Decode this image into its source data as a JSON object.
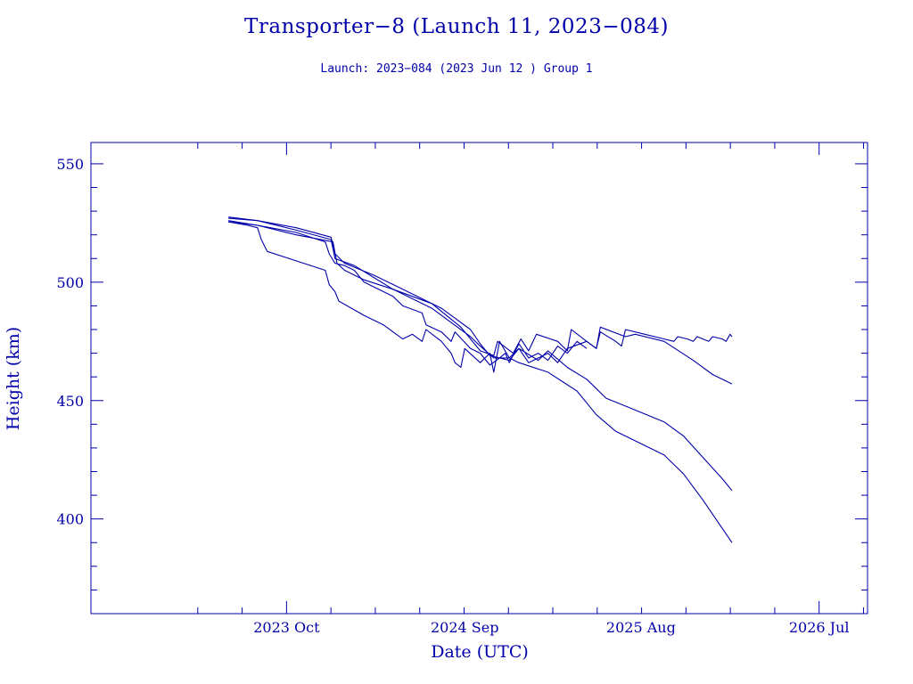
{
  "chart_data": {
    "type": "line",
    "title": "Transporter−8 (Launch 11, 2023−084)",
    "subtitle": "Launch: 2023−084  (2023 Jun 12 )  Group 1",
    "xlabel": "Date (UTC)",
    "ylabel": "Height (km)",
    "xlim": [
      2022.74,
      2026.75
    ],
    "ylim": [
      360,
      559
    ],
    "x_ticks": [
      {
        "value": 2023.75,
        "label": "2023 Oct"
      },
      {
        "value": 2024.67,
        "label": "2024 Sep"
      },
      {
        "value": 2025.58,
        "label": "2025 Aug"
      },
      {
        "value": 2026.5,
        "label": "2026 Jul"
      }
    ],
    "y_ticks": [
      {
        "value": 400,
        "label": "400"
      },
      {
        "value": 450,
        "label": "450"
      },
      {
        "value": 500,
        "label": "500"
      },
      {
        "value": 550,
        "label": "550"
      }
    ],
    "line_color": "#0000aa",
    "series": [
      {
        "name": "object-1",
        "points": [
          [
            2023.45,
            527.5
          ],
          [
            2023.6,
            526
          ],
          [
            2023.8,
            523
          ],
          [
            2023.98,
            519
          ],
          [
            2024.0,
            512
          ],
          [
            2024.05,
            508
          ],
          [
            2024.2,
            503
          ],
          [
            2024.35,
            497
          ],
          [
            2024.55,
            489
          ],
          [
            2024.7,
            480
          ],
          [
            2024.75,
            474
          ],
          [
            2024.8,
            469
          ],
          [
            2024.9,
            467
          ],
          [
            2024.95,
            472
          ],
          [
            2025.05,
            467
          ],
          [
            2025.1,
            471
          ],
          [
            2025.2,
            464
          ],
          [
            2025.3,
            459
          ],
          [
            2025.4,
            451
          ],
          [
            2025.55,
            446
          ],
          [
            2025.7,
            441
          ],
          [
            2025.8,
            435
          ],
          [
            2025.9,
            426
          ],
          [
            2026.0,
            417
          ],
          [
            2026.05,
            412
          ]
        ]
      },
      {
        "name": "object-2",
        "points": [
          [
            2023.45,
            525.5
          ],
          [
            2023.6,
            524
          ],
          [
            2023.8,
            520
          ],
          [
            2023.99,
            517
          ],
          [
            2024.01,
            508
          ],
          [
            2024.05,
            505
          ],
          [
            2024.15,
            501
          ],
          [
            2024.3,
            497
          ],
          [
            2024.5,
            489
          ],
          [
            2024.7,
            477
          ],
          [
            2024.75,
            473
          ],
          [
            2024.82,
            468
          ],
          [
            2024.9,
            468
          ],
          [
            2024.95,
            466
          ],
          [
            2025.1,
            462
          ],
          [
            2025.25,
            454
          ],
          [
            2025.35,
            444
          ],
          [
            2025.45,
            437
          ],
          [
            2025.6,
            431
          ],
          [
            2025.7,
            427
          ],
          [
            2025.8,
            419
          ],
          [
            2025.9,
            408
          ],
          [
            2026.0,
            396
          ],
          [
            2026.05,
            390
          ]
        ]
      },
      {
        "name": "object-3",
        "points": [
          [
            2023.45,
            527
          ],
          [
            2023.6,
            526
          ],
          [
            2023.8,
            522
          ],
          [
            2023.98,
            518
          ],
          [
            2024.0,
            510
          ],
          [
            2024.1,
            507
          ],
          [
            2024.2,
            502
          ],
          [
            2024.3,
            497
          ],
          [
            2024.5,
            491
          ],
          [
            2024.65,
            481
          ],
          [
            2024.75,
            471
          ],
          [
            2024.82,
            469
          ],
          [
            2024.84,
            475
          ],
          [
            2024.92,
            470
          ],
          [
            2024.96,
            476
          ],
          [
            2025.0,
            471
          ],
          [
            2025.04,
            478
          ],
          [
            2025.15,
            475
          ],
          [
            2025.2,
            471
          ],
          [
            2025.22,
            480
          ],
          [
            2025.3,
            475
          ],
          [
            2025.35,
            472
          ],
          [
            2025.37,
            481
          ],
          [
            2025.5,
            477
          ],
          [
            2025.55,
            478
          ],
          [
            2025.7,
            475
          ],
          [
            2025.85,
            467
          ],
          [
            2025.95,
            461
          ],
          [
            2026.05,
            457
          ]
        ]
      },
      {
        "name": "object-4",
        "points": [
          [
            2023.45,
            525.5
          ],
          [
            2023.55,
            524
          ],
          [
            2023.6,
            523
          ],
          [
            2023.62,
            518
          ],
          [
            2023.65,
            513
          ],
          [
            2023.8,
            509
          ],
          [
            2023.95,
            505
          ],
          [
            2023.97,
            499
          ],
          [
            2024.0,
            496
          ],
          [
            2024.02,
            492
          ],
          [
            2024.15,
            486
          ],
          [
            2024.25,
            482
          ],
          [
            2024.3,
            479
          ],
          [
            2024.35,
            476
          ],
          [
            2024.4,
            478
          ],
          [
            2024.45,
            475
          ],
          [
            2024.47,
            480
          ],
          [
            2024.55,
            475
          ],
          [
            2024.6,
            470
          ],
          [
            2024.62,
            466
          ],
          [
            2024.65,
            464
          ],
          [
            2024.67,
            472
          ],
          [
            2024.75,
            466
          ],
          [
            2024.8,
            470
          ],
          [
            2024.82,
            462
          ],
          [
            2024.85,
            475
          ],
          [
            2024.9,
            468
          ],
          [
            2024.95,
            472
          ],
          [
            2025.0,
            466
          ],
          [
            2025.1,
            470
          ],
          [
            2025.15,
            466
          ],
          [
            2025.2,
            472
          ],
          [
            2025.3,
            475
          ],
          [
            2025.35,
            472
          ],
          [
            2025.37,
            479
          ],
          [
            2025.45,
            475
          ],
          [
            2025.48,
            473
          ],
          [
            2025.5,
            480
          ],
          [
            2025.6,
            478
          ],
          [
            2025.7,
            476
          ],
          [
            2025.75,
            475
          ],
          [
            2025.77,
            477
          ],
          [
            2025.82,
            476
          ],
          [
            2025.85,
            475
          ],
          [
            2025.87,
            477
          ],
          [
            2025.93,
            475
          ],
          [
            2025.95,
            477
          ],
          [
            2026.0,
            476
          ],
          [
            2026.02,
            475
          ],
          [
            2026.04,
            478
          ],
          [
            2026.05,
            477
          ]
        ]
      },
      {
        "name": "object-5",
        "points": [
          [
            2023.45,
            526
          ],
          [
            2023.6,
            524
          ],
          [
            2023.8,
            521
          ],
          [
            2023.95,
            517
          ],
          [
            2023.97,
            512
          ],
          [
            2024.0,
            508
          ],
          [
            2024.05,
            507
          ],
          [
            2024.1,
            505
          ],
          [
            2024.15,
            500
          ],
          [
            2024.3,
            494
          ],
          [
            2024.35,
            490
          ],
          [
            2024.45,
            487
          ],
          [
            2024.47,
            482
          ],
          [
            2024.55,
            479
          ],
          [
            2024.6,
            475
          ],
          [
            2024.62,
            479
          ],
          [
            2024.7,
            472
          ],
          [
            2024.75,
            470
          ],
          [
            2024.8,
            465
          ],
          [
            2024.85,
            468
          ],
          [
            2024.88,
            470
          ],
          [
            2024.9,
            466
          ],
          [
            2024.95,
            474
          ],
          [
            2025.0,
            468
          ],
          [
            2025.05,
            470
          ],
          [
            2025.1,
            467
          ],
          [
            2025.15,
            473
          ],
          [
            2025.2,
            470
          ],
          [
            2025.25,
            475
          ],
          [
            2025.3,
            472
          ]
        ]
      }
    ]
  }
}
